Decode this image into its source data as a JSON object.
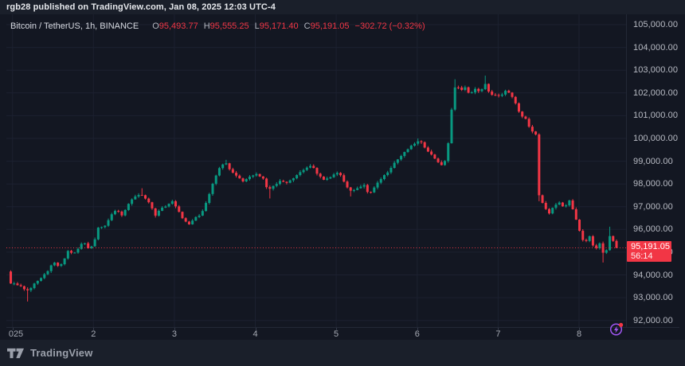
{
  "header": {
    "published_line": "rgb28 published on TradingView.com, Jan 08, 2025 12:03 UTC-4"
  },
  "legend": {
    "symbol": "Bitcoin / TetherUS, 1h, BINANCE",
    "ohlc": [
      {
        "key": "O",
        "value": "95,493.77"
      },
      {
        "key": "H",
        "value": "95,555.25"
      },
      {
        "key": "L",
        "value": "95,171.40"
      },
      {
        "key": "C",
        "value": "95,191.05"
      }
    ],
    "change": "−302.72 (−0.32%)"
  },
  "price_scale": {
    "ticks": [
      {
        "value": 105000,
        "label": "105,000.00"
      },
      {
        "value": 104000,
        "label": "104,000.00"
      },
      {
        "value": 103000,
        "label": "103,000.00"
      },
      {
        "value": 102000,
        "label": "102,000.00"
      },
      {
        "value": 101000,
        "label": "101,000.00"
      },
      {
        "value": 100000,
        "label": "100,000.00"
      },
      {
        "value": 99000,
        "label": "99,000.00"
      },
      {
        "value": 98000,
        "label": "98,000.00"
      },
      {
        "value": 97000,
        "label": "97,000.00"
      },
      {
        "value": 96000,
        "label": "96,000.00"
      },
      {
        "value": 95000,
        "label": "95,000.00"
      },
      {
        "value": 94000,
        "label": "94,000.00"
      },
      {
        "value": 93000,
        "label": "93,000.00"
      },
      {
        "value": 92000,
        "label": "92,000.00"
      }
    ],
    "last": {
      "price": "95,191.05",
      "countdown": "56:14"
    }
  },
  "time_scale": {
    "ticks": [
      {
        "label": "025",
        "grid_index": 0.52,
        "label_index": 1.55
      },
      {
        "label": "2",
        "grid_index": 24.57,
        "label_index": 24.57
      },
      {
        "label": "3",
        "grid_index": 48.62,
        "label_index": 48.62
      },
      {
        "label": "4",
        "grid_index": 72.67,
        "label_index": 72.67
      },
      {
        "label": "5",
        "grid_index": 96.72,
        "label_index": 96.72
      },
      {
        "label": "6",
        "grid_index": 120.77,
        "label_index": 120.77
      },
      {
        "label": "7",
        "grid_index": 144.82,
        "label_index": 144.82
      },
      {
        "label": "8",
        "grid_index": 168.87,
        "label_index": 168.87
      }
    ]
  },
  "footer": {
    "brand": "TradingView"
  },
  "colors": {
    "up": "#089981",
    "down": "#f23645",
    "grid": "#1c2130",
    "bg": "#131722",
    "accent_purple": "#a156f2"
  },
  "chart_data": {
    "type": "candlestick",
    "title": "Bitcoin / TetherUS",
    "exchange": "BINANCE",
    "interval": "1h",
    "x_axis": {
      "start_day_label": "2025 Jan 1",
      "end_day_label": "Jan 8",
      "interval_hours": 1
    },
    "y_axis": {
      "min": 91710,
      "max": 105455,
      "tick_min": 92000,
      "tick_max": 105000,
      "tick_step": 1000
    },
    "num_candles": 181,
    "first_open": 94150,
    "ohlc_last": {
      "open": 95493.77,
      "high": 95555.25,
      "low": 95171.4,
      "close": 95191.05,
      "change": -302.72,
      "change_pct": -0.32
    },
    "current_price_line": {
      "price": 95191.05,
      "style": "dotted",
      "color": "#f23645"
    },
    "price_path_keypoints": [
      [
        0,
        93650
      ],
      [
        1,
        93600
      ],
      [
        2.5,
        93560
      ],
      [
        4,
        93380
      ],
      [
        5.5,
        93300
      ],
      [
        7,
        93640
      ],
      [
        9,
        93860
      ],
      [
        11,
        94150
      ],
      [
        12.5,
        94580
      ],
      [
        14,
        94380
      ],
      [
        15.5,
        94520
      ],
      [
        17,
        95060
      ],
      [
        18.5,
        94920
      ],
      [
        20,
        95130
      ],
      [
        21.5,
        95480
      ],
      [
        23,
        95180
      ],
      [
        24.5,
        95320
      ],
      [
        26,
        96080
      ],
      [
        28,
        96180
      ],
      [
        30,
        96640
      ],
      [
        31.5,
        96880
      ],
      [
        33,
        96620
      ],
      [
        35,
        97120
      ],
      [
        36.5,
        97380
      ],
      [
        38.5,
        97560
      ],
      [
        40,
        97350
      ],
      [
        41.5,
        97080
      ],
      [
        43,
        96620
      ],
      [
        44.5,
        96900
      ],
      [
        46.5,
        97060
      ],
      [
        48,
        97260
      ],
      [
        49.5,
        96920
      ],
      [
        51.5,
        96380
      ],
      [
        53,
        96220
      ],
      [
        54.5,
        96480
      ],
      [
        56.5,
        96650
      ],
      [
        58.5,
        97350
      ],
      [
        60.5,
        98250
      ],
      [
        62.5,
        98820
      ],
      [
        63.8,
        98980
      ],
      [
        65.5,
        98540
      ],
      [
        67,
        98380
      ],
      [
        69,
        98120
      ],
      [
        71,
        98320
      ],
      [
        73,
        98460
      ],
      [
        75,
        98230
      ],
      [
        76.5,
        97700
      ],
      [
        78,
        97930
      ],
      [
        80,
        98120
      ],
      [
        82,
        98070
      ],
      [
        84,
        98270
      ],
      [
        86,
        98520
      ],
      [
        88,
        98720
      ],
      [
        89.5,
        98790
      ],
      [
        91,
        98470
      ],
      [
        93,
        98170
      ],
      [
        95,
        98280
      ],
      [
        97.5,
        98560
      ],
      [
        99.5,
        97950
      ],
      [
        101,
        97680
      ],
      [
        103,
        97830
      ],
      [
        105,
        97930
      ],
      [
        106.5,
        97520
      ],
      [
        108,
        97830
      ],
      [
        110,
        98230
      ],
      [
        112,
        98530
      ],
      [
        114,
        98930
      ],
      [
        116,
        99230
      ],
      [
        118,
        99530
      ],
      [
        120,
        99780
      ],
      [
        121.5,
        99900
      ],
      [
        123,
        99620
      ],
      [
        125,
        99280
      ],
      [
        127,
        98970
      ],
      [
        128.5,
        98720
      ],
      [
        129.8,
        99500
      ],
      [
        131,
        101250
      ],
      [
        132.3,
        102520
      ],
      [
        133.5,
        102080
      ],
      [
        135,
        102230
      ],
      [
        136.5,
        101930
      ],
      [
        138,
        102160
      ],
      [
        139.5,
        102060
      ],
      [
        141,
        102380
      ],
      [
        142.5,
        101880
      ],
      [
        144,
        101930
      ],
      [
        145.5,
        101830
      ],
      [
        147,
        102070
      ],
      [
        148.5,
        101980
      ],
      [
        150,
        101520
      ],
      [
        151.5,
        101050
      ],
      [
        153,
        100850
      ],
      [
        154.5,
        100350
      ],
      [
        156,
        100150
      ],
      [
        157,
        97500
      ],
      [
        158.5,
        97020
      ],
      [
        160,
        96680
      ],
      [
        161.5,
        97080
      ],
      [
        163,
        97180
      ],
      [
        164.5,
        96960
      ],
      [
        166,
        97260
      ],
      [
        167.5,
        96680
      ],
      [
        169,
        95930
      ],
      [
        170.5,
        95380
      ],
      [
        172,
        95680
      ],
      [
        173.5,
        95080
      ],
      [
        175,
        95380
      ],
      [
        176.5,
        94800
      ],
      [
        178,
        95680
      ],
      [
        179,
        95493.77
      ],
      [
        180,
        95191.05
      ]
    ],
    "wick_overrides": {
      "0": {
        "high": 94200
      },
      "5": {
        "low": 92830
      },
      "39": {
        "high": 97810
      },
      "64": {
        "high": 99060
      },
      "77": {
        "low": 97360
      },
      "101": {
        "low": 97450
      },
      "121": {
        "high": 100000
      },
      "132": {
        "high": 102600
      },
      "141": {
        "high": 102760
      },
      "157": {
        "low": 97240
      },
      "176": {
        "low": 94545
      },
      "178": {
        "high": 96120
      }
    },
    "layout": {
      "first_candle_x": 5.5,
      "candle_step": 4.225,
      "body_width": 3,
      "jitter": 55,
      "wick": 70
    }
  }
}
